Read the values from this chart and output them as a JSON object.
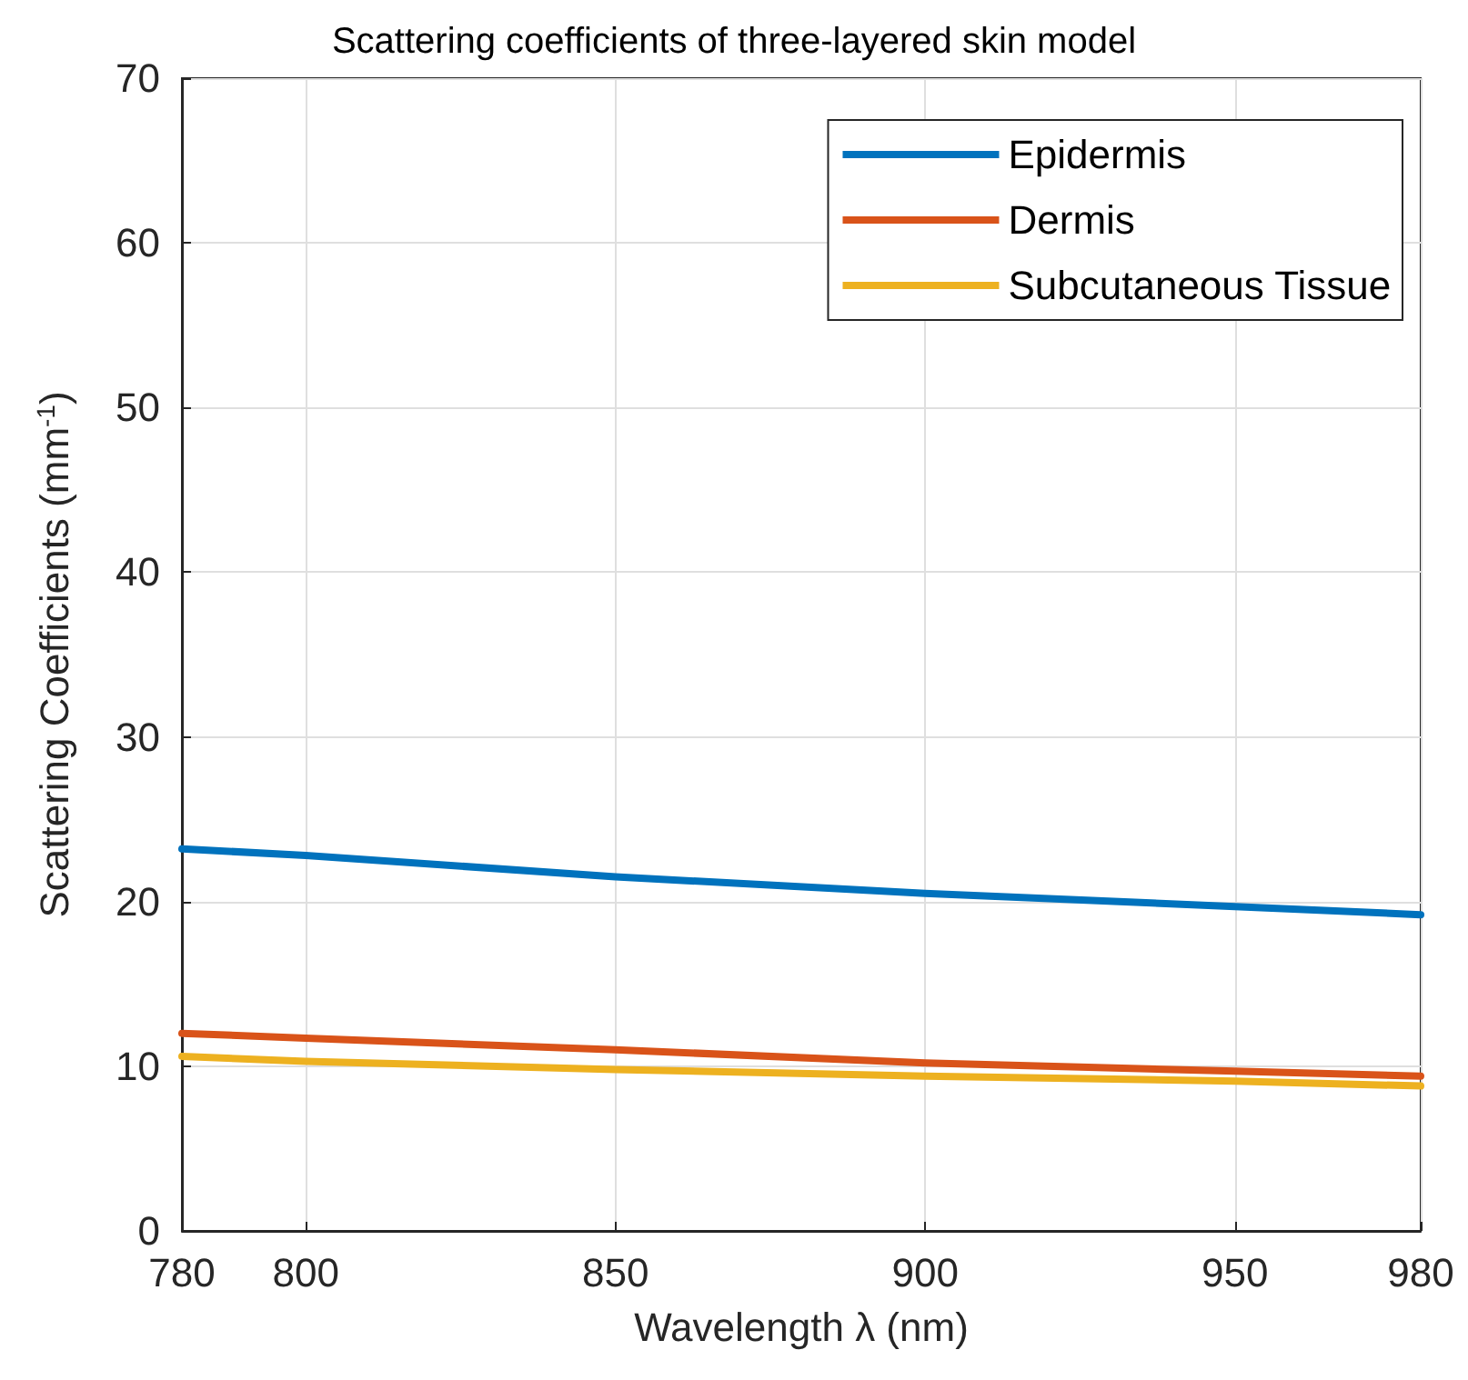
{
  "chart_data": {
    "type": "line",
    "title": "Scattering coefficients of three-layered skin model",
    "xlabel": "Wavelength λ (nm)",
    "ylabel": "Scattering Coefficients (mm$^{-1}$)",
    "x": [
      780,
      800,
      850,
      900,
      950,
      980
    ],
    "series": [
      {
        "name": "Epidermis",
        "color": "#0072bd",
        "values": [
          23.2,
          22.8,
          21.5,
          20.5,
          19.7,
          19.2
        ]
      },
      {
        "name": "Dermis",
        "color": "#d95319",
        "values": [
          12.0,
          11.7,
          11.0,
          10.2,
          9.7,
          9.4
        ]
      },
      {
        "name": "Subcutaneous Tissue",
        "color": "#edb120",
        "values": [
          10.6,
          10.3,
          9.8,
          9.4,
          9.1,
          8.8
        ]
      }
    ],
    "xlim": [
      780,
      980
    ],
    "xticks": [
      780,
      800,
      850,
      900,
      950,
      980
    ],
    "ylim": [
      0,
      70
    ],
    "yticks": [
      0,
      10,
      20,
      30,
      40,
      50,
      60,
      70
    ],
    "grid": true,
    "legend": "top right",
    "marker": "none",
    "line_style": "solid"
  }
}
